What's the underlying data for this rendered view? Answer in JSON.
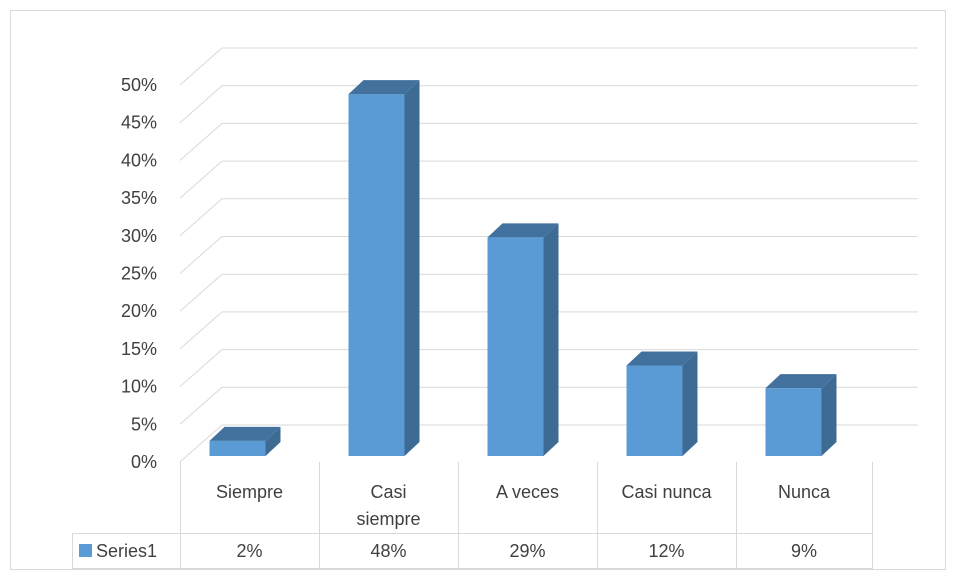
{
  "chart_data": {
    "type": "bar",
    "categories": [
      [
        "Siempre"
      ],
      [
        "Casi",
        "siempre"
      ],
      [
        "A veces"
      ],
      [
        "Casi nunca"
      ],
      [
        "Nunca"
      ]
    ],
    "series": [
      {
        "name": "Series1",
        "values": [
          2,
          48,
          29,
          12,
          9
        ],
        "value_labels": [
          "2%",
          "48%",
          "29%",
          "12%",
          "9%"
        ]
      }
    ],
    "y_ticks": [
      "0%",
      "5%",
      "10%",
      "15%",
      "20%",
      "25%",
      "30%",
      "35%",
      "40%",
      "45%",
      "50%"
    ],
    "ylim": [
      0,
      50
    ],
    "grid": true,
    "data_table": true,
    "style": "3d-column",
    "colors": {
      "front": "#5b9bd5",
      "side": "#3e6b94",
      "top": "#41719c",
      "grid": "#d9d9d9",
      "text": "#404040",
      "border": "#d9d9d9"
    }
  }
}
